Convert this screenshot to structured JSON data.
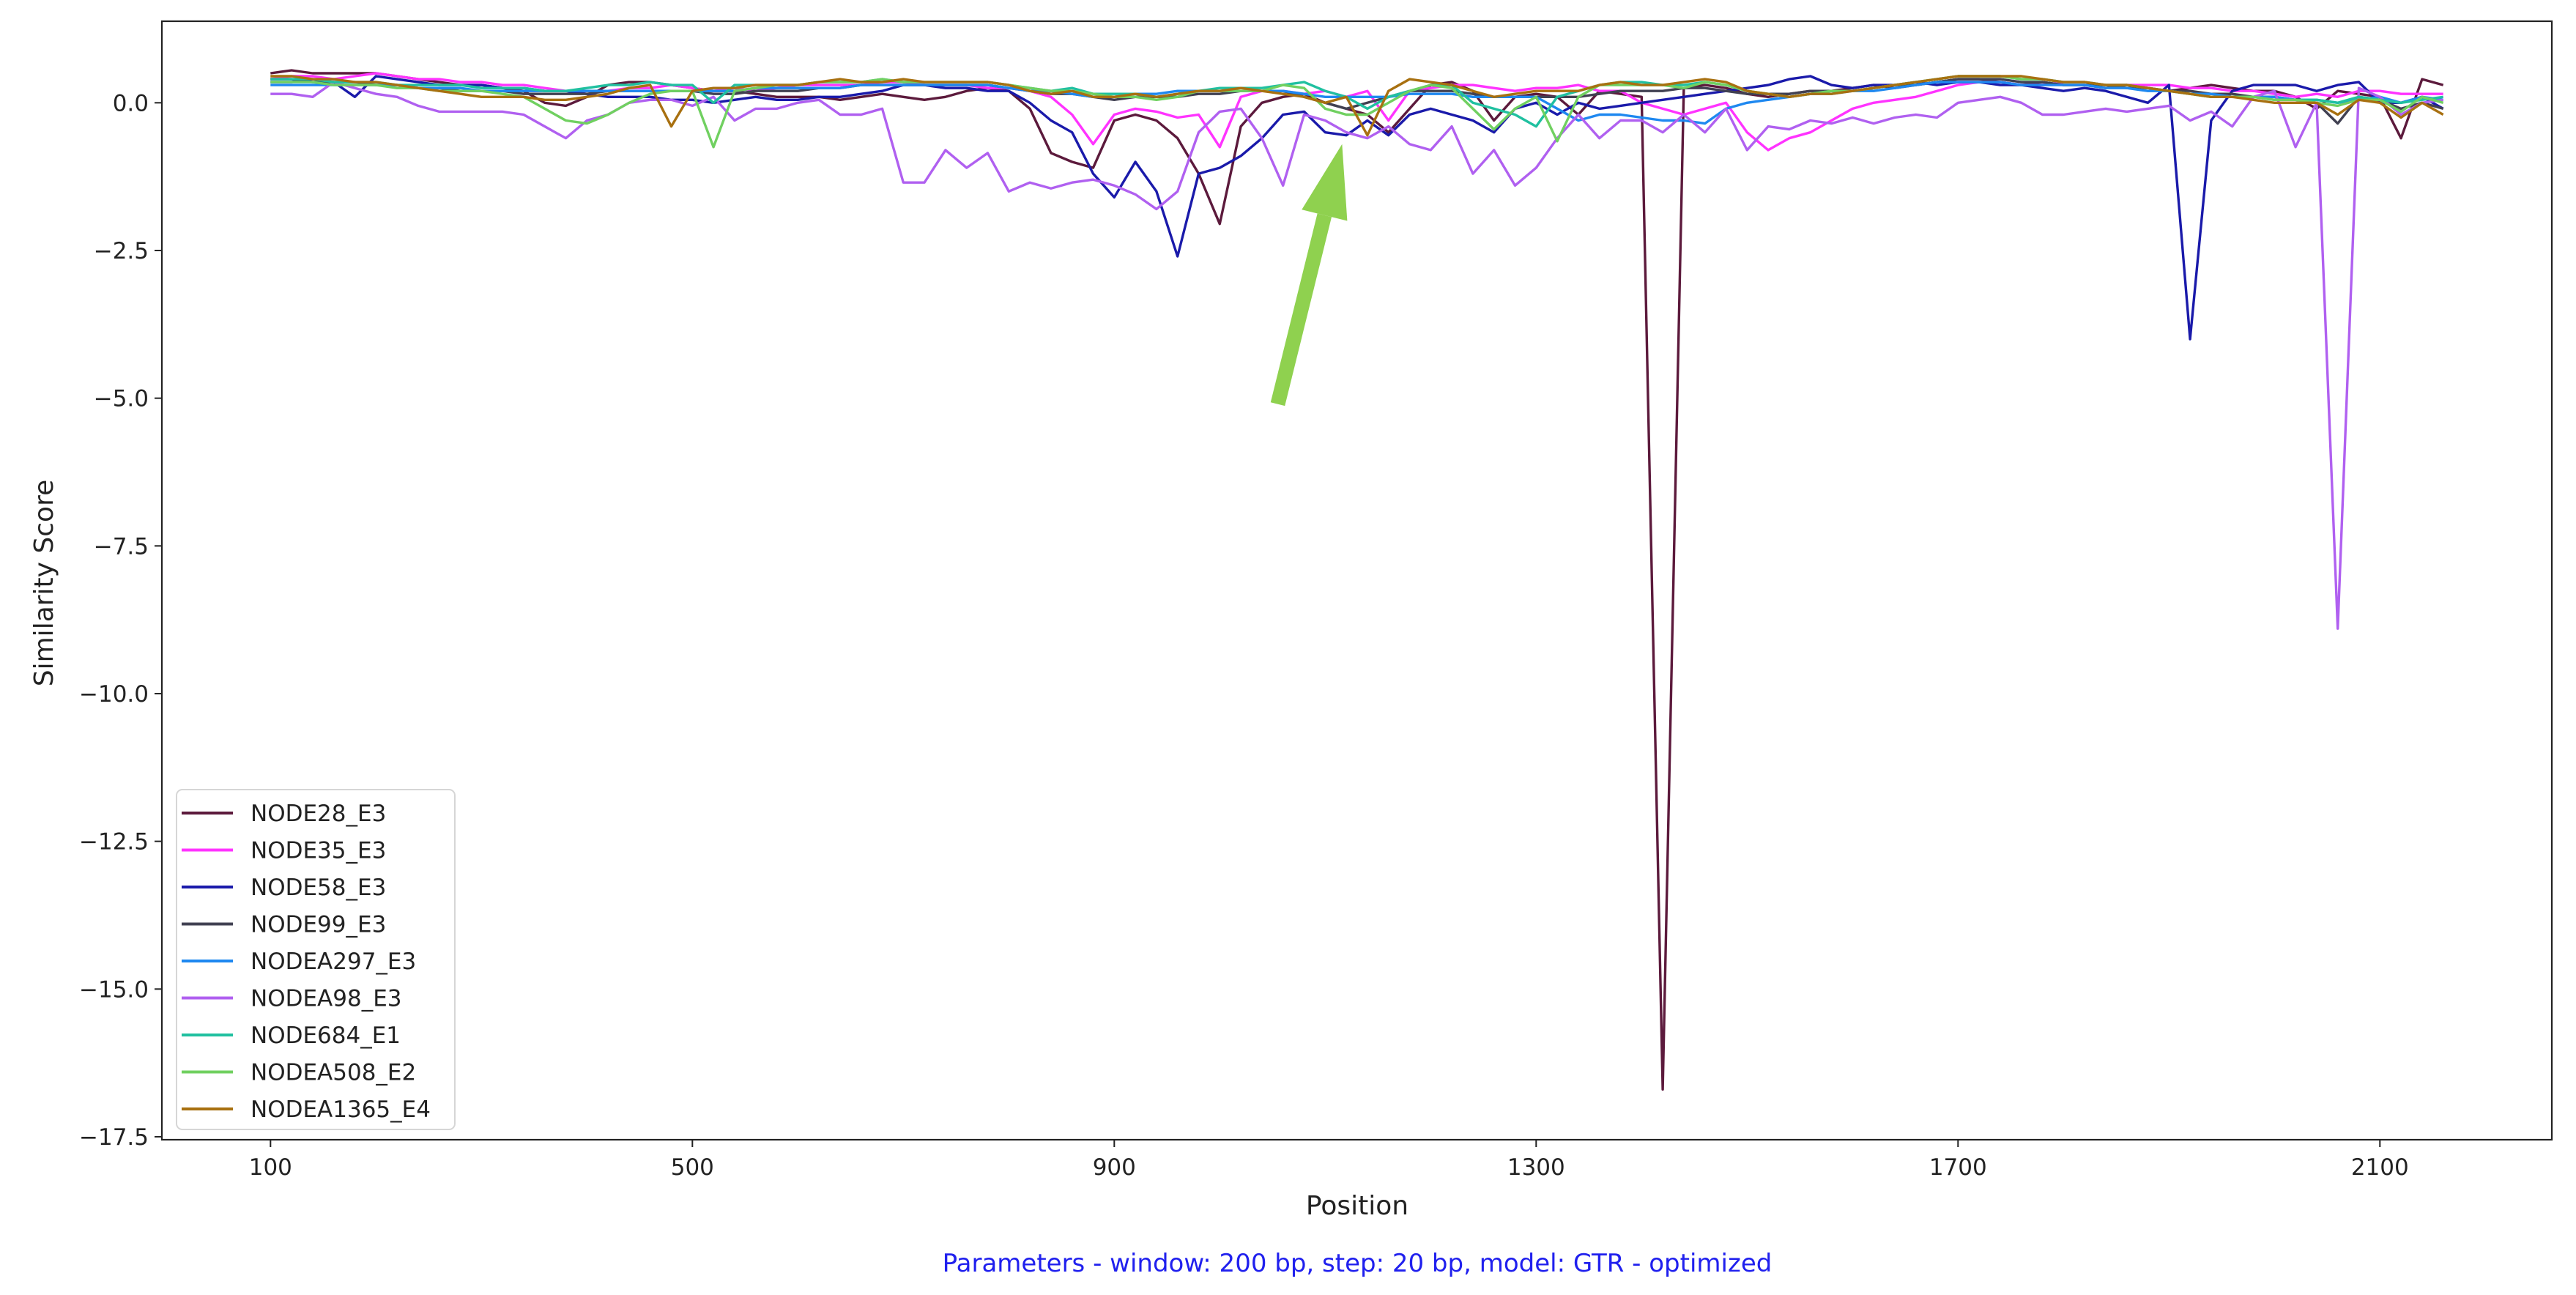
{
  "chart_data": {
    "type": "line",
    "xlabel": "Position",
    "ylabel": "Similarity Score",
    "footer": "Parameters - window: 200 bp, step: 20 bp, model: GTR - optimized",
    "footer_color": "#2020ee",
    "xlim": [
      -3,
      2263
    ],
    "ylim": [
      -17.55,
      1.38
    ],
    "xticks": [
      100,
      500,
      900,
      1300,
      1700,
      2100
    ],
    "yticks": [
      0.0,
      -2.5,
      -5.0,
      -7.5,
      -10.0,
      -12.5,
      -15.0,
      -17.5
    ],
    "ytick_labels": [
      "0.0",
      "−2.5",
      "−5.0",
      "−7.5",
      "−10.0",
      "−12.5",
      "−15.0",
      "−17.5"
    ],
    "grid": false,
    "legend_position": "lower-left",
    "annotation": {
      "type": "arrow",
      "color": "#8fd14f",
      "from": [
        1055,
        -5.1
      ],
      "to": [
        1116,
        -0.7
      ]
    },
    "x": [
      100,
      120,
      140,
      160,
      180,
      200,
      220,
      240,
      260,
      280,
      300,
      320,
      340,
      360,
      380,
      400,
      420,
      440,
      460,
      480,
      500,
      520,
      540,
      560,
      580,
      600,
      620,
      640,
      660,
      680,
      700,
      720,
      740,
      760,
      780,
      800,
      820,
      840,
      860,
      880,
      900,
      920,
      940,
      960,
      980,
      1000,
      1020,
      1040,
      1060,
      1080,
      1100,
      1120,
      1140,
      1160,
      1180,
      1200,
      1220,
      1240,
      1260,
      1280,
      1300,
      1320,
      1340,
      1360,
      1380,
      1400,
      1420,
      1440,
      1460,
      1480,
      1500,
      1520,
      1540,
      1560,
      1580,
      1600,
      1620,
      1640,
      1660,
      1680,
      1700,
      1720,
      1740,
      1760,
      1780,
      1800,
      1820,
      1840,
      1860,
      1880,
      1900,
      1920,
      1940,
      1960,
      1980,
      2000,
      2020,
      2040,
      2060,
      2080,
      2100,
      2120,
      2140,
      2160
    ],
    "series": [
      {
        "name": "NODE28_E3",
        "color": "#5c1a3c",
        "width": 3.4,
        "values": [
          0.5,
          0.55,
          0.5,
          0.5,
          0.5,
          0.5,
          0.45,
          0.4,
          0.35,
          0.3,
          0.3,
          0.25,
          0.2,
          0.0,
          -0.05,
          0.1,
          0.3,
          0.35,
          0.35,
          0.3,
          0.25,
          0.2,
          0.2,
          0.15,
          0.1,
          0.1,
          0.1,
          0.05,
          0.1,
          0.15,
          0.1,
          0.05,
          0.1,
          0.2,
          0.25,
          0.2,
          -0.1,
          -0.85,
          -1.0,
          -1.1,
          -0.3,
          -0.2,
          -0.3,
          -0.6,
          -1.2,
          -2.05,
          -0.4,
          0.0,
          0.1,
          0.15,
          0.0,
          -0.1,
          -0.2,
          -0.5,
          -0.1,
          0.3,
          0.35,
          0.2,
          -0.3,
          0.1,
          0.15,
          0.1,
          -0.2,
          0.2,
          0.15,
          0.1,
          -16.7,
          0.25,
          0.3,
          0.25,
          0.15,
          0.1,
          0.15,
          0.2,
          0.2,
          0.25,
          0.3,
          0.25,
          0.3,
          0.35,
          0.4,
          0.4,
          0.35,
          0.3,
          0.35,
          0.3,
          0.3,
          0.25,
          0.3,
          0.25,
          0.2,
          0.25,
          0.3,
          0.25,
          0.2,
          0.2,
          0.1,
          -0.1,
          0.2,
          0.15,
          0.1,
          -0.6,
          0.4,
          0.3
        ]
      },
      {
        "name": "NODE35_E3",
        "color": "#ff33ff",
        "width": 3.4,
        "values": [
          0.4,
          0.45,
          0.45,
          0.4,
          0.45,
          0.5,
          0.45,
          0.4,
          0.4,
          0.35,
          0.35,
          0.3,
          0.3,
          0.25,
          0.2,
          0.2,
          0.2,
          0.25,
          0.25,
          0.3,
          0.25,
          0.2,
          0.25,
          0.2,
          0.25,
          0.3,
          0.3,
          0.3,
          0.3,
          0.35,
          0.35,
          0.3,
          0.3,
          0.3,
          0.25,
          0.25,
          0.2,
          0.1,
          -0.2,
          -0.7,
          -0.2,
          -0.1,
          -0.15,
          -0.25,
          -0.2,
          -0.75,
          0.1,
          0.2,
          0.2,
          0.15,
          0.2,
          0.1,
          0.2,
          -0.3,
          0.2,
          0.25,
          0.3,
          0.3,
          0.25,
          0.2,
          0.25,
          0.25,
          0.3,
          0.2,
          0.2,
          0.0,
          -0.1,
          -0.2,
          -0.1,
          0.0,
          -0.5,
          -0.8,
          -0.6,
          -0.5,
          -0.3,
          -0.1,
          0.0,
          0.05,
          0.1,
          0.2,
          0.3,
          0.35,
          0.35,
          0.3,
          0.3,
          0.35,
          0.35,
          0.3,
          0.3,
          0.3,
          0.3,
          0.25,
          0.25,
          0.2,
          0.2,
          0.15,
          0.1,
          0.15,
          0.1,
          0.2,
          0.2,
          0.15,
          0.15,
          0.15
        ]
      },
      {
        "name": "NODE58_E3",
        "color": "#1a1aaa",
        "width": 3.4,
        "values": [
          0.35,
          0.35,
          0.4,
          0.35,
          0.1,
          0.45,
          0.4,
          0.35,
          0.3,
          0.3,
          0.3,
          0.25,
          0.25,
          0.2,
          0.2,
          0.15,
          0.1,
          0.1,
          0.1,
          0.05,
          0.05,
          0.0,
          0.05,
          0.1,
          0.05,
          0.05,
          0.1,
          0.1,
          0.15,
          0.2,
          0.3,
          0.3,
          0.25,
          0.25,
          0.2,
          0.2,
          0.0,
          -0.3,
          -0.5,
          -1.2,
          -1.6,
          -1.0,
          -1.5,
          -2.6,
          -1.2,
          -1.1,
          -0.9,
          -0.6,
          -0.2,
          -0.15,
          -0.5,
          -0.55,
          -0.3,
          -0.55,
          -0.2,
          -0.1,
          -0.2,
          -0.3,
          -0.5,
          -0.1,
          0.0,
          -0.2,
          0.0,
          -0.1,
          -0.05,
          0.0,
          0.05,
          0.1,
          0.15,
          0.2,
          0.25,
          0.3,
          0.4,
          0.45,
          0.3,
          0.25,
          0.3,
          0.3,
          0.35,
          0.3,
          0.35,
          0.35,
          0.3,
          0.3,
          0.25,
          0.2,
          0.25,
          0.2,
          0.1,
          0.0,
          0.3,
          -4.0,
          -0.3,
          0.2,
          0.3,
          0.3,
          0.3,
          0.2,
          0.3,
          0.35,
          0.0,
          0.0,
          0.1,
          -0.1
        ]
      },
      {
        "name": "NODE99_E3",
        "color": "#414152",
        "width": 3.4,
        "values": [
          0.4,
          0.4,
          0.35,
          0.35,
          0.35,
          0.3,
          0.3,
          0.25,
          0.25,
          0.2,
          0.2,
          0.2,
          0.15,
          0.15,
          0.15,
          0.15,
          0.2,
          0.2,
          0.2,
          0.2,
          0.2,
          0.15,
          0.15,
          0.2,
          0.2,
          0.2,
          0.25,
          0.25,
          0.3,
          0.3,
          0.3,
          0.3,
          0.3,
          0.3,
          0.3,
          0.25,
          0.2,
          0.15,
          0.15,
          0.1,
          0.05,
          0.1,
          0.1,
          0.1,
          0.15,
          0.15,
          0.2,
          0.2,
          0.2,
          0.1,
          0.0,
          -0.1,
          0.0,
          0.1,
          0.2,
          0.2,
          0.2,
          0.15,
          0.1,
          0.1,
          0.1,
          0.1,
          0.1,
          0.15,
          0.2,
          0.2,
          0.2,
          0.25,
          0.25,
          0.2,
          0.15,
          0.15,
          0.15,
          0.2,
          0.2,
          0.2,
          0.25,
          0.3,
          0.3,
          0.35,
          0.4,
          0.4,
          0.4,
          0.35,
          0.35,
          0.3,
          0.3,
          0.3,
          0.25,
          0.25,
          0.2,
          0.2,
          0.15,
          0.15,
          0.1,
          0.1,
          0.05,
          0.0,
          -0.35,
          0.1,
          0.05,
          -0.1,
          0.0,
          -0.1
        ]
      },
      {
        "name": "NODEA297_E3",
        "color": "#1e88f0",
        "width": 3.4,
        "values": [
          0.3,
          0.3,
          0.3,
          0.3,
          0.3,
          0.3,
          0.3,
          0.25,
          0.25,
          0.25,
          0.2,
          0.2,
          0.2,
          0.2,
          0.2,
          0.2,
          0.2,
          0.2,
          0.2,
          0.2,
          0.2,
          0.2,
          0.2,
          0.25,
          0.25,
          0.25,
          0.25,
          0.25,
          0.3,
          0.3,
          0.3,
          0.3,
          0.3,
          0.3,
          0.3,
          0.25,
          0.2,
          0.2,
          0.15,
          0.1,
          0.1,
          0.15,
          0.15,
          0.2,
          0.2,
          0.2,
          0.2,
          0.2,
          0.2,
          0.15,
          0.1,
          0.1,
          0.1,
          0.1,
          0.15,
          0.15,
          0.15,
          0.1,
          0.1,
          0.1,
          0.1,
          -0.1,
          -0.3,
          -0.2,
          -0.2,
          -0.25,
          -0.3,
          -0.3,
          -0.35,
          -0.1,
          0.0,
          0.05,
          0.1,
          0.15,
          0.15,
          0.2,
          0.2,
          0.25,
          0.3,
          0.35,
          0.35,
          0.35,
          0.35,
          0.3,
          0.3,
          0.3,
          0.3,
          0.25,
          0.25,
          0.2,
          0.2,
          0.15,
          0.15,
          0.1,
          0.1,
          0.1,
          0.05,
          0.05,
          0.0,
          0.05,
          0.1,
          0.0,
          0.1,
          0.05
        ]
      },
      {
        "name": "NODEA98_E3",
        "color": "#b060f0",
        "width": 3.4,
        "values": [
          0.15,
          0.15,
          0.1,
          0.35,
          0.25,
          0.15,
          0.1,
          -0.05,
          -0.15,
          -0.15,
          -0.15,
          -0.15,
          -0.2,
          -0.4,
          -0.6,
          -0.3,
          -0.2,
          0.0,
          0.05,
          0.05,
          -0.05,
          0.1,
          -0.3,
          -0.1,
          -0.1,
          0.0,
          0.05,
          -0.2,
          -0.2,
          -0.1,
          -1.35,
          -1.35,
          -0.8,
          -1.1,
          -0.85,
          -1.5,
          -1.35,
          -1.45,
          -1.35,
          -1.3,
          -1.4,
          -1.55,
          -1.8,
          -1.5,
          -0.5,
          -0.15,
          -0.1,
          -0.6,
          -1.4,
          -0.2,
          -0.3,
          -0.5,
          -0.6,
          -0.4,
          -0.7,
          -0.8,
          -0.4,
          -1.2,
          -0.8,
          -1.4,
          -1.1,
          -0.6,
          -0.2,
          -0.6,
          -0.3,
          -0.3,
          -0.5,
          -0.2,
          -0.5,
          -0.1,
          -0.8,
          -0.4,
          -0.45,
          -0.3,
          -0.35,
          -0.25,
          -0.35,
          -0.25,
          -0.2,
          -0.25,
          0.0,
          0.05,
          0.1,
          0.0,
          -0.2,
          -0.2,
          -0.15,
          -0.1,
          -0.15,
          -0.1,
          -0.05,
          -0.3,
          -0.15,
          -0.4,
          0.1,
          0.2,
          -0.75,
          0.0,
          -8.9,
          0.25,
          0.1,
          -0.2,
          0.0,
          0.05
        ]
      },
      {
        "name": "NODE684_E1",
        "color": "#20c0a0",
        "width": 3.4,
        "values": [
          0.4,
          0.4,
          0.4,
          0.35,
          0.35,
          0.35,
          0.3,
          0.3,
          0.3,
          0.3,
          0.25,
          0.25,
          0.25,
          0.2,
          0.2,
          0.25,
          0.3,
          0.3,
          0.35,
          0.3,
          0.3,
          0.0,
          0.3,
          0.3,
          0.3,
          0.3,
          0.35,
          0.35,
          0.35,
          0.4,
          0.35,
          0.35,
          0.35,
          0.35,
          0.35,
          0.3,
          0.25,
          0.2,
          0.25,
          0.15,
          0.15,
          0.15,
          0.1,
          0.15,
          0.2,
          0.25,
          0.25,
          0.25,
          0.3,
          0.35,
          0.2,
          0.1,
          -0.1,
          0.1,
          0.2,
          0.3,
          0.3,
          0.0,
          -0.1,
          -0.2,
          -0.4,
          0.1,
          0.2,
          0.3,
          0.35,
          0.35,
          0.3,
          0.3,
          0.35,
          0.3,
          0.2,
          0.15,
          0.1,
          0.15,
          0.2,
          0.2,
          0.25,
          0.3,
          0.35,
          0.4,
          0.45,
          0.45,
          0.45,
          0.4,
          0.4,
          0.35,
          0.35,
          0.3,
          0.3,
          0.25,
          0.2,
          0.15,
          0.1,
          0.1,
          0.1,
          0.05,
          0.05,
          0.05,
          0.0,
          0.1,
          0.05,
          0.0,
          0.05,
          0.1
        ]
      },
      {
        "name": "NODEA508_E2",
        "color": "#70d060",
        "width": 3.4,
        "values": [
          0.35,
          0.35,
          0.35,
          0.3,
          0.3,
          0.3,
          0.25,
          0.25,
          0.2,
          0.2,
          0.2,
          0.15,
          0.1,
          -0.1,
          -0.3,
          -0.35,
          -0.2,
          0.0,
          0.15,
          0.2,
          0.2,
          -0.75,
          0.2,
          0.25,
          0.3,
          0.3,
          0.35,
          0.35,
          0.35,
          0.4,
          0.35,
          0.35,
          0.35,
          0.35,
          0.35,
          0.3,
          0.25,
          0.2,
          0.2,
          0.15,
          0.1,
          0.1,
          0.05,
          0.1,
          0.2,
          0.2,
          0.2,
          0.2,
          0.3,
          0.25,
          -0.1,
          -0.2,
          -0.2,
          0.0,
          0.2,
          0.3,
          0.25,
          -0.1,
          -0.45,
          -0.1,
          0.1,
          -0.65,
          0.1,
          0.3,
          0.3,
          0.3,
          0.3,
          0.25,
          0.35,
          0.3,
          0.2,
          0.15,
          0.1,
          0.15,
          0.2,
          0.2,
          0.25,
          0.3,
          0.35,
          0.4,
          0.45,
          0.45,
          0.45,
          0.4,
          0.4,
          0.35,
          0.35,
          0.3,
          0.3,
          0.25,
          0.2,
          0.15,
          0.1,
          0.1,
          0.1,
          0.05,
          0.05,
          0.0,
          -0.05,
          0.05,
          0.05,
          -0.15,
          0.1,
          0.0
        ]
      },
      {
        "name": "NODEA1365_E4",
        "color": "#a87010",
        "width": 3.4,
        "values": [
          0.45,
          0.45,
          0.4,
          0.4,
          0.35,
          0.35,
          0.3,
          0.25,
          0.2,
          0.15,
          0.1,
          0.1,
          0.1,
          0.05,
          0.05,
          0.1,
          0.15,
          0.25,
          0.3,
          -0.4,
          0.2,
          0.25,
          0.25,
          0.3,
          0.3,
          0.3,
          0.35,
          0.4,
          0.35,
          0.35,
          0.4,
          0.35,
          0.35,
          0.35,
          0.35,
          0.3,
          0.2,
          0.15,
          0.2,
          0.1,
          0.1,
          0.15,
          0.1,
          0.15,
          0.2,
          0.2,
          0.25,
          0.2,
          0.15,
          0.1,
          0.0,
          0.1,
          -0.55,
          0.2,
          0.4,
          0.35,
          0.3,
          0.2,
          0.1,
          0.15,
          0.2,
          0.2,
          0.2,
          0.3,
          0.35,
          0.3,
          0.3,
          0.35,
          0.4,
          0.35,
          0.2,
          0.15,
          0.1,
          0.15,
          0.15,
          0.2,
          0.25,
          0.3,
          0.35,
          0.4,
          0.45,
          0.45,
          0.45,
          0.45,
          0.4,
          0.35,
          0.35,
          0.3,
          0.3,
          0.25,
          0.2,
          0.15,
          0.1,
          0.1,
          0.05,
          0.0,
          0.0,
          0.0,
          -0.2,
          0.05,
          0.0,
          -0.25,
          0.0,
          -0.2
        ]
      }
    ]
  }
}
